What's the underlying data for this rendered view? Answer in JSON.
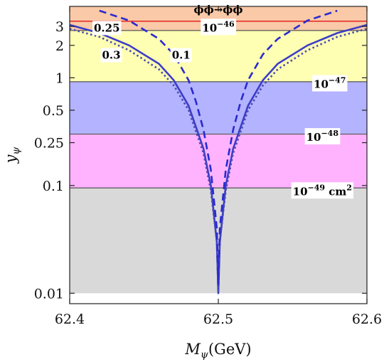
{
  "chart_data": {
    "type": "line",
    "xlabel": "M",
    "xlabel_sub": "ψ",
    "xlabel_unit": "(GeV)",
    "ylabel": "y",
    "ylabel_sub": "ψ",
    "x_range": [
      62.4,
      62.6
    ],
    "y_range": [
      0.008,
      4.6
    ],
    "y_scale": "log",
    "x_ticks": [
      {
        "value": 62.4,
        "label": "62.4"
      },
      {
        "value": 62.5,
        "label": "62.5"
      },
      {
        "value": 62.6,
        "label": "62.6"
      }
    ],
    "y_ticks": [
      {
        "value": 0.01,
        "label": "0.01"
      },
      {
        "value": 0.1,
        "label": "0.1"
      },
      {
        "value": 0.25,
        "label": "0.25"
      },
      {
        "value": 0.5,
        "label": "0.5"
      },
      {
        "value": 1,
        "label": "1"
      },
      {
        "value": 2,
        "label": "2"
      },
      {
        "value": 3,
        "label": "3"
      }
    ],
    "bands": [
      {
        "name": "gray",
        "y_from": 0.01,
        "y_to": 0.095,
        "color": "#d9d9d9"
      },
      {
        "name": "pink",
        "y_from": 0.095,
        "y_to": 0.3,
        "color": "#ffb3ff"
      },
      {
        "name": "blue",
        "y_from": 0.3,
        "y_to": 0.92,
        "color": "#b3b3ff"
      },
      {
        "name": "yellow",
        "y_from": 0.92,
        "y_to": 2.75,
        "color": "#ffffb3"
      },
      {
        "name": "orange",
        "y_from": 2.75,
        "y_to": 4.6,
        "color": "#f9c9a8"
      }
    ],
    "boundary_lines": [
      0.095,
      0.3,
      0.92,
      2.75
    ],
    "bound_line": {
      "y": 3.35,
      "color": "#e6302a"
    },
    "series": [
      {
        "style": "solid",
        "color": "#3d3dc8",
        "points": [
          [
            62.4,
            3.1
          ],
          [
            62.42,
            2.6
          ],
          [
            62.44,
            2.0
          ],
          [
            62.46,
            1.35
          ],
          [
            62.47,
            0.95
          ],
          [
            62.48,
            0.55
          ],
          [
            62.49,
            0.22
          ],
          [
            62.495,
            0.1
          ],
          [
            62.499,
            0.03
          ],
          [
            62.5,
            0.01
          ],
          [
            62.501,
            0.03
          ],
          [
            62.505,
            0.1
          ],
          [
            62.51,
            0.22
          ],
          [
            62.52,
            0.55
          ],
          [
            62.53,
            0.95
          ],
          [
            62.54,
            1.35
          ],
          [
            62.56,
            2.0
          ],
          [
            62.58,
            2.6
          ],
          [
            62.6,
            3.1
          ]
        ]
      },
      {
        "style": "dotted",
        "color": "#4a4ab0",
        "points": [
          [
            62.4,
            2.85
          ],
          [
            62.42,
            2.4
          ],
          [
            62.44,
            1.8
          ],
          [
            62.46,
            1.2
          ],
          [
            62.47,
            0.85
          ],
          [
            62.48,
            0.5
          ],
          [
            62.49,
            0.2
          ],
          [
            62.495,
            0.09
          ],
          [
            62.499,
            0.03
          ],
          [
            62.5,
            0.01
          ],
          [
            62.501,
            0.03
          ],
          [
            62.505,
            0.09
          ],
          [
            62.51,
            0.2
          ],
          [
            62.52,
            0.5
          ],
          [
            62.53,
            0.85
          ],
          [
            62.54,
            1.2
          ],
          [
            62.56,
            1.8
          ],
          [
            62.58,
            2.4
          ],
          [
            62.6,
            2.85
          ]
        ]
      },
      {
        "style": "dashed",
        "color": "#2a2ad0",
        "points": [
          [
            62.42,
            4.2
          ],
          [
            62.44,
            3.4
          ],
          [
            62.46,
            2.3
          ],
          [
            62.47,
            1.65
          ],
          [
            62.48,
            0.95
          ],
          [
            62.485,
            0.6
          ],
          [
            62.49,
            0.33
          ],
          [
            62.495,
            0.14
          ],
          [
            62.499,
            0.04
          ],
          [
            62.5,
            0.012
          ],
          [
            62.501,
            0.04
          ],
          [
            62.505,
            0.14
          ],
          [
            62.51,
            0.33
          ],
          [
            62.515,
            0.6
          ],
          [
            62.52,
            0.95
          ],
          [
            62.53,
            1.65
          ],
          [
            62.54,
            2.3
          ],
          [
            62.56,
            3.4
          ],
          [
            62.58,
            4.2
          ]
        ]
      }
    ],
    "labels": [
      {
        "text": "ϕϕ→ϕϕ",
        "x": 62.5,
        "y": 4.3,
        "bg": false
      },
      {
        "text": "0.25",
        "x": 62.425,
        "y": 2.9,
        "bg": true
      },
      {
        "text": "10",
        "sup": "−46",
        "x": 62.5,
        "y": 2.9,
        "bg": true
      },
      {
        "text": "0.3",
        "x": 62.428,
        "y": 1.62,
        "bg": true
      },
      {
        "text": "0.1",
        "x": 62.475,
        "y": 1.62,
        "bg": true
      },
      {
        "text": "10",
        "sup": "−47",
        "x": 62.575,
        "y": 0.87,
        "bg": true
      },
      {
        "text": "10",
        "sup": "−48",
        "x": 62.57,
        "y": 0.28,
        "bg": true
      },
      {
        "text": "10",
        "sup": "−49",
        "unit": " cm",
        "unit_sup": "2",
        "x": 62.57,
        "y": 0.088,
        "bg": true
      }
    ]
  }
}
